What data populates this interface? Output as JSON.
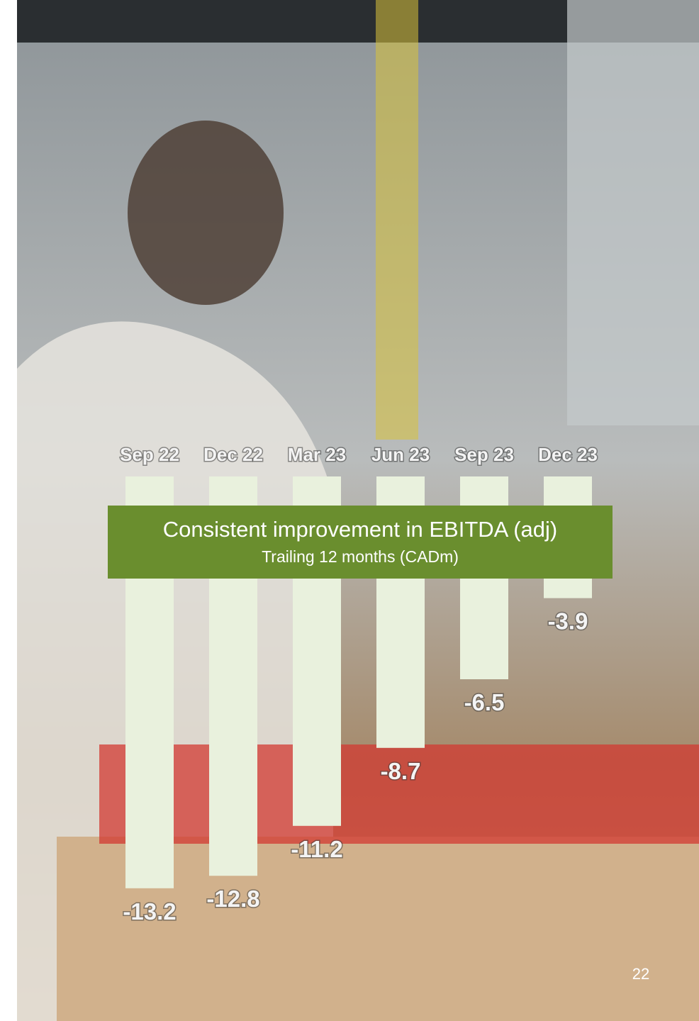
{
  "chart_data": {
    "type": "bar",
    "title": "Consistent improvement in EBITDA (adj)",
    "subtitle": "Trailing 12 months (CADm)",
    "categories": [
      "Sep 22",
      "Dec 22",
      "Mar 23",
      "Jun 23",
      "Sep 23",
      "Dec 23"
    ],
    "values": [
      -13.2,
      -12.8,
      -11.2,
      -8.7,
      -6.5,
      -3.9
    ],
    "color": "#e9f1dd",
    "ylim": [
      -14,
      0
    ]
  },
  "page_number": "22"
}
